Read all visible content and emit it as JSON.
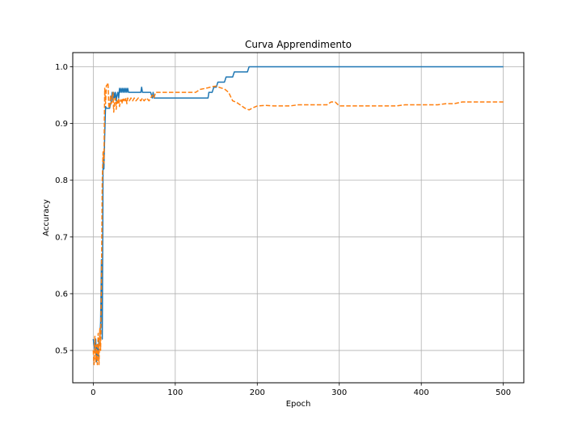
{
  "chart_data": {
    "type": "line",
    "title": "Curva Apprendimento",
    "xlabel": "Epoch",
    "ylabel": "Accuracy",
    "xlim": [
      -25,
      525
    ],
    "ylim": [
      0.443,
      1.025
    ],
    "xticks": [
      0,
      100,
      200,
      300,
      400,
      500
    ],
    "yticks": [
      0.5,
      0.6,
      0.7,
      0.8,
      0.9,
      1.0
    ],
    "ytick_labels": [
      "0.5",
      "0.6",
      "0.7",
      "0.8",
      "0.9",
      "1.0"
    ],
    "grid": true,
    "series": [
      {
        "color": "#1f77b4",
        "dash": "solid",
        "x": [
          0,
          2,
          3,
          4,
          5,
          6,
          7,
          8,
          9,
          10,
          11,
          12,
          13,
          14,
          15,
          16,
          18,
          20,
          22,
          23,
          24,
          25,
          26,
          27,
          28,
          29,
          30,
          31,
          32,
          33,
          34,
          35,
          36,
          37,
          38,
          39,
          40,
          41,
          42,
          43,
          45,
          50,
          55,
          58,
          59,
          60,
          62,
          65,
          70,
          72,
          73,
          74,
          75,
          80,
          90,
          100,
          110,
          120,
          130,
          140,
          141,
          145,
          147,
          150,
          152,
          155,
          160,
          162,
          170,
          172,
          180,
          188,
          190,
          200,
          250,
          300,
          350,
          400,
          450,
          500
        ],
        "y": [
          0.52,
          0.5,
          0.52,
          0.48,
          0.51,
          0.49,
          0.52,
          0.52,
          0.55,
          0.66,
          0.52,
          0.84,
          0.82,
          0.88,
          0.93,
          0.927,
          0.927,
          0.927,
          0.94,
          0.955,
          0.94,
          0.955,
          0.945,
          0.955,
          0.94,
          0.95,
          0.955,
          0.945,
          0.962,
          0.955,
          0.962,
          0.955,
          0.962,
          0.955,
          0.962,
          0.955,
          0.962,
          0.955,
          0.962,
          0.955,
          0.955,
          0.955,
          0.955,
          0.955,
          0.964,
          0.955,
          0.955,
          0.955,
          0.955,
          0.945,
          0.955,
          0.945,
          0.945,
          0.945,
          0.945,
          0.945,
          0.945,
          0.945,
          0.945,
          0.945,
          0.955,
          0.955,
          0.964,
          0.964,
          0.973,
          0.973,
          0.973,
          0.982,
          0.982,
          0.991,
          0.991,
          0.991,
          1.0,
          1.0,
          1.0,
          1.0,
          1.0,
          1.0,
          1.0,
          1.0
        ]
      },
      {
        "color": "#ff7f0e",
        "dash": "dashed",
        "x": [
          0,
          1,
          2,
          3,
          4,
          5,
          6,
          7,
          8,
          9,
          10,
          11,
          12,
          13,
          14,
          15,
          16,
          17,
          18,
          19,
          20,
          21,
          22,
          23,
          24,
          25,
          26,
          27,
          28,
          29,
          30,
          31,
          32,
          33,
          34,
          35,
          36,
          37,
          38,
          39,
          40,
          41,
          42,
          44,
          46,
          48,
          50,
          52,
          55,
          58,
          60,
          62,
          65,
          68,
          70,
          72,
          74,
          76,
          80,
          90,
          100,
          110,
          120,
          125,
          130,
          140,
          145,
          150,
          155,
          160,
          165,
          170,
          175,
          180,
          185,
          190,
          195,
          200,
          210,
          220,
          230,
          240,
          250,
          260,
          270,
          280,
          285,
          290,
          295,
          300,
          310,
          320,
          330,
          340,
          350,
          360,
          370,
          380,
          390,
          400,
          410,
          420,
          430,
          440,
          450,
          460,
          470,
          480,
          490,
          500
        ],
        "y": [
          0.5,
          0.475,
          0.525,
          0.48,
          0.51,
          0.475,
          0.53,
          0.475,
          0.54,
          0.5,
          0.62,
          0.8,
          0.85,
          0.83,
          0.962,
          0.935,
          0.967,
          0.968,
          0.972,
          0.93,
          0.927,
          0.95,
          0.935,
          0.94,
          0.955,
          0.92,
          0.94,
          0.945,
          0.925,
          0.94,
          0.935,
          0.945,
          0.93,
          0.94,
          0.942,
          0.935,
          0.945,
          0.94,
          0.945,
          0.94,
          0.945,
          0.935,
          0.945,
          0.94,
          0.945,
          0.94,
          0.945,
          0.94,
          0.945,
          0.94,
          0.945,
          0.94,
          0.945,
          0.94,
          0.945,
          0.95,
          0.945,
          0.955,
          0.955,
          0.955,
          0.955,
          0.955,
          0.955,
          0.955,
          0.96,
          0.963,
          0.965,
          0.966,
          0.963,
          0.961,
          0.955,
          0.94,
          0.937,
          0.932,
          0.927,
          0.924,
          0.928,
          0.931,
          0.932,
          0.931,
          0.931,
          0.931,
          0.933,
          0.933,
          0.933,
          0.933,
          0.933,
          0.938,
          0.938,
          0.931,
          0.931,
          0.931,
          0.931,
          0.931,
          0.931,
          0.931,
          0.931,
          0.933,
          0.933,
          0.933,
          0.933,
          0.933,
          0.935,
          0.935,
          0.938,
          0.938,
          0.938,
          0.938,
          0.938,
          0.938
        ]
      }
    ]
  }
}
